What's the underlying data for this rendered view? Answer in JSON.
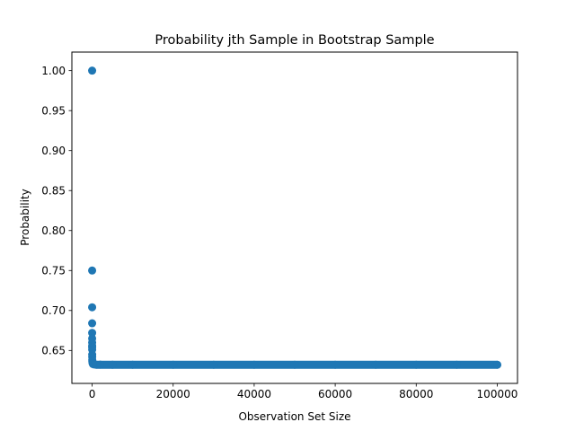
{
  "chart_data": {
    "type": "scatter",
    "title": "Probability jth Sample in Bootstrap Sample",
    "xlabel": "Observation Set Size",
    "ylabel": "Probability",
    "xlim": [
      -5000,
      105000
    ],
    "ylim": [
      0.6088,
      1.0232
    ],
    "x_ticks": [
      0,
      20000,
      40000,
      60000,
      80000,
      100000
    ],
    "y_ticks": [
      0.65,
      0.7,
      0.75,
      0.8,
      0.85,
      0.9,
      0.95,
      1.0
    ],
    "x_tick_labels": [
      "0",
      "20000",
      "40000",
      "60000",
      "80000",
      "100000"
    ],
    "y_tick_labels": [
      "0.65",
      "0.70",
      "0.75",
      "0.80",
      "0.85",
      "0.90",
      "0.95",
      "1.00"
    ],
    "grid": false,
    "marker_color": "#1f77b4",
    "series": [
      {
        "x": [
          1,
          2,
          3,
          4,
          5,
          6,
          7,
          8,
          9,
          10,
          15,
          20,
          30,
          50,
          100,
          200,
          500,
          1000,
          2000,
          5000,
          10000,
          20000,
          30000,
          40000,
          50000,
          60000,
          70000,
          80000,
          90000,
          100000
        ],
        "y": [
          1.0,
          0.75,
          0.704,
          0.684,
          0.672,
          0.665,
          0.66,
          0.656,
          0.654,
          0.651,
          0.645,
          0.642,
          0.638,
          0.636,
          0.634,
          0.633,
          0.6325,
          0.6323,
          0.6322,
          0.6321,
          0.6321,
          0.6321,
          0.6321,
          0.6321,
          0.6321,
          0.6321,
          0.6321,
          0.6321,
          0.6321,
          0.6321
        ]
      }
    ]
  }
}
